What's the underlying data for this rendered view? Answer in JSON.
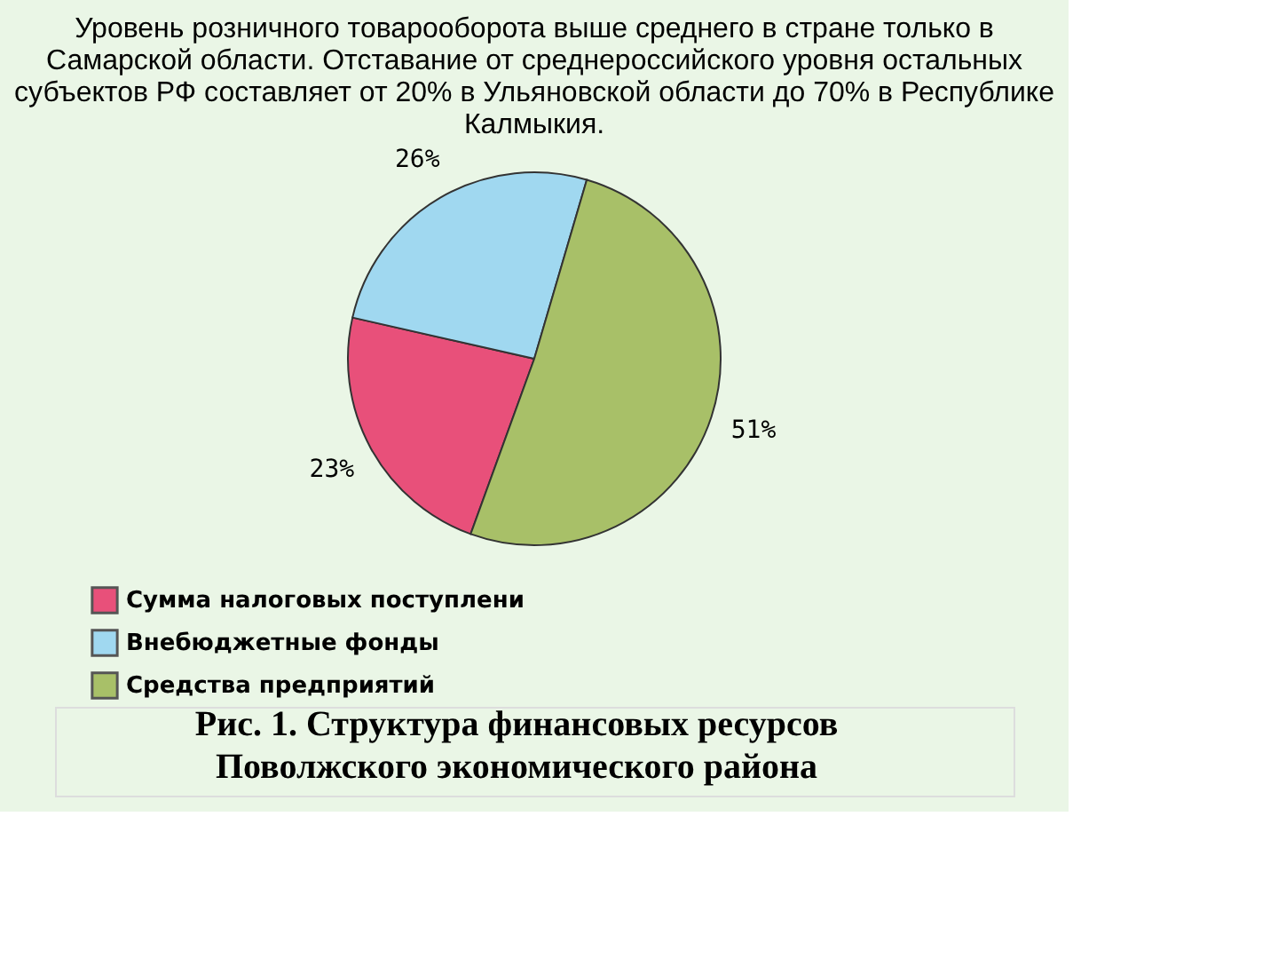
{
  "chart_data": {
    "type": "pie",
    "title": "Уровень розничного товарооборота выше среднего в стране только в Самарской области. Отставание от среднероссийского уровня остальных субъектов РФ составляет от 20% в Ульяновской области до 70% в Республике Калмыкия.",
    "categories": [
      "Сумма налоговых поступлени",
      "Внебюджетные фонды",
      "Средства предприятий"
    ],
    "values": [
      23,
      26,
      51
    ],
    "colors": [
      "#e8507a",
      "#a0d8f0",
      "#a8c068"
    ],
    "value_labels": [
      "23%",
      "26%",
      "51%"
    ],
    "legend": "bottom left",
    "annotations": [
      "Рис. 1. Структура финансовых ресурсов Поволжского экономического района"
    ]
  }
}
